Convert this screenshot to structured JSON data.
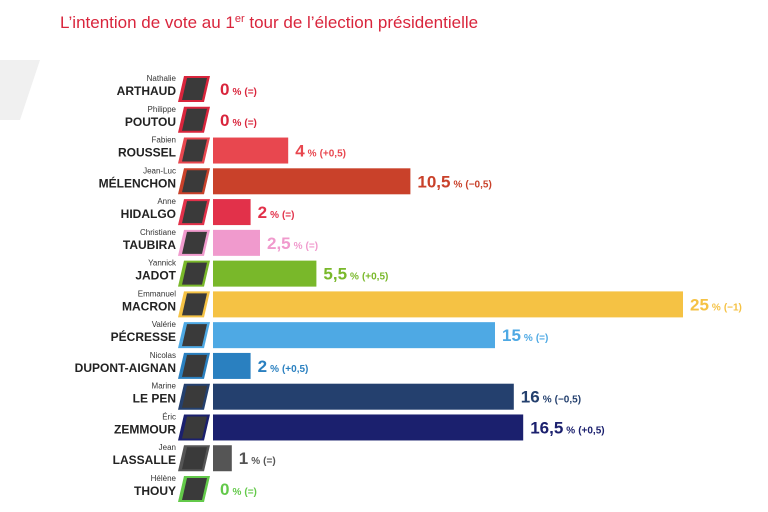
{
  "chart_data": {
    "type": "bar",
    "orientation": "horizontal",
    "title": [
      "L’intention de vote au 1",
      "er",
      " tour de l’élection présidentielle"
    ],
    "first_names": [
      "Nathalie",
      "Philippe",
      "Fabien",
      "Jean-Luc",
      "Anne",
      "Christiane",
      "Yannick",
      "Emmanuel",
      "Valérie",
      "Nicolas",
      "Marine",
      "Éric",
      "Jean",
      "Hélène"
    ],
    "categories": [
      "ARTHAUD",
      "POUTOU",
      "ROUSSEL",
      "MÉLENCHON",
      "HIDALGO",
      "TAUBIRA",
      "JADOT",
      "MACRON",
      "PÉCRESSE",
      "DUPONT-AIGNAN",
      "LE PEN",
      "ZEMMOUR",
      "LASSALLE",
      "THOUY"
    ],
    "values": [
      0,
      0,
      4,
      10.5,
      2,
      2.5,
      5.5,
      25,
      15,
      2,
      16,
      16.5,
      1,
      0
    ],
    "value_labels": [
      "0",
      "0",
      "4",
      "10,5",
      "2",
      "2,5",
      "5,5",
      "25",
      "15",
      "2",
      "16",
      "16,5",
      "1",
      "0"
    ],
    "unit": "%",
    "changes": [
      "(=)",
      "(=)",
      "(+0,5)",
      "(−0,5)",
      "(=)",
      "(=)",
      "(+0,5)",
      "(−1)",
      "(=)",
      "(+0,5)",
      "(−0,5)",
      "(+0,5)",
      "(=)",
      "(=)"
    ],
    "colors": [
      "#d9253c",
      "#d9253c",
      "#e8474f",
      "#c9412a",
      "#e2314a",
      "#f09acd",
      "#79b82a",
      "#f5c244",
      "#4ea9e4",
      "#2a80c0",
      "#24406e",
      "#1b206e",
      "#555555",
      "#63c94a"
    ],
    "xlim": [
      0,
      25
    ]
  }
}
